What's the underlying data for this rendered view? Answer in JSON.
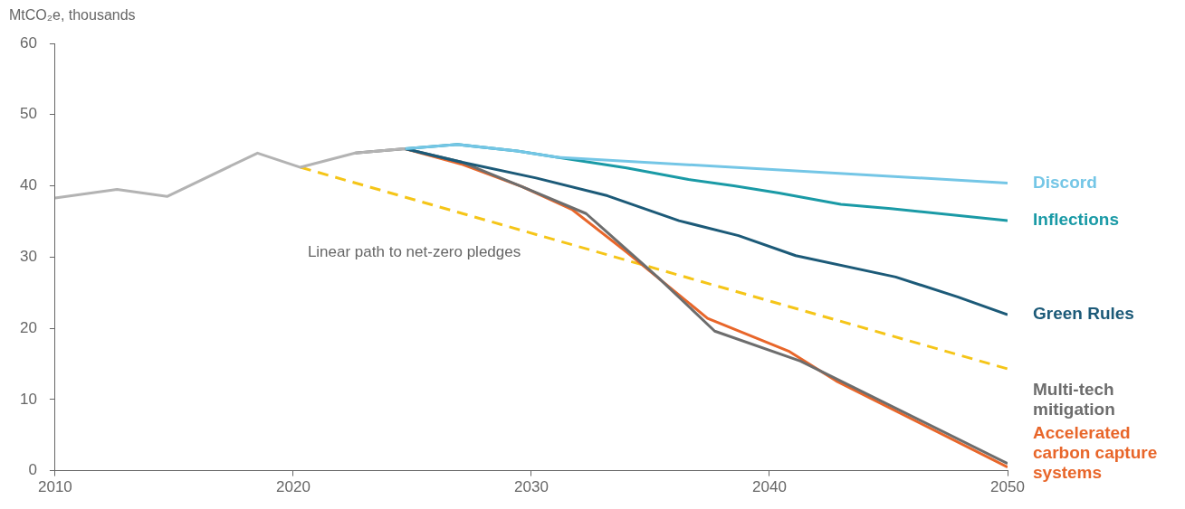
{
  "chart_data": {
    "type": "line",
    "ylabel": "MtCO₂e, thousands",
    "xlim": [
      2010,
      2050
    ],
    "xticks": [
      2010,
      2020,
      2030,
      2040,
      2050
    ],
    "ylim": [
      0,
      60
    ],
    "yticks": [
      0,
      10,
      20,
      30,
      40,
      50,
      60
    ],
    "grid": false,
    "legend": false,
    "marker": "none",
    "series": [
      {
        "color": "#b3b3b3",
        "x": [
          2010,
          2012.6,
          2014.7,
          2018.5,
          2020.3,
          2022.6,
          2024.7
        ],
        "values": [
          38.3,
          39.5,
          38.5,
          44.6,
          42.6,
          44.6,
          45.2
        ]
      },
      {
        "name": "Discord",
        "color": "#74c6e6",
        "x": [
          2024.7,
          2026.9,
          2029.4,
          2031.1,
          2050
        ],
        "values": [
          45.2,
          45.8,
          44.9,
          44.0,
          40.4
        ]
      },
      {
        "name": "Inflections",
        "color": "#1a9aa6",
        "x": [
          2024.7,
          2026.9,
          2029.4,
          2031.1,
          2034,
          2036.6,
          2038.5,
          2040.4,
          2043,
          2045.1,
          2050
        ],
        "values": [
          45.2,
          45.8,
          44.9,
          44.0,
          42.5,
          40.9,
          40.0,
          39.0,
          37.4,
          36.8,
          35.1
        ]
      },
      {
        "name": "Green Rules",
        "color": "#1c5a78",
        "x": [
          2024.7,
          2027.1,
          2030.2,
          2033.2,
          2036.2,
          2038.7,
          2041.1,
          2045.3,
          2047.9,
          2050
        ],
        "values": [
          45.2,
          43.3,
          41.1,
          38.6,
          35.1,
          33.0,
          30.2,
          27.2,
          24.4,
          21.9
        ]
      },
      {
        "name": "Multi-tech mitigation",
        "color": "#6d6d6d",
        "x": [
          2022.6,
          2024.7,
          2027.1,
          2029.6,
          2032.3,
          2035.3,
          2037.7,
          2041.3,
          2050
        ],
        "values": [
          44.6,
          45.2,
          43.3,
          39.9,
          36.1,
          27.2,
          19.6,
          15.4,
          1.0
        ]
      },
      {
        "name": "Accelerated carbon capture systems",
        "color": "#e8662a",
        "x": [
          2024.7,
          2027.1,
          2029.6,
          2031.7,
          2034,
          2037.4,
          2040.8,
          2042.8,
          2050
        ],
        "values": [
          45.2,
          43.0,
          39.9,
          36.7,
          30.7,
          21.4,
          16.8,
          12.6,
          0.5
        ]
      },
      {
        "color": "#f5c518",
        "line_style": "dashed",
        "x": [
          2020.3,
          2050
        ],
        "values": [
          42.6,
          14.3
        ]
      }
    ],
    "annotations": [
      "Linear path to net-zero pledges"
    ]
  }
}
